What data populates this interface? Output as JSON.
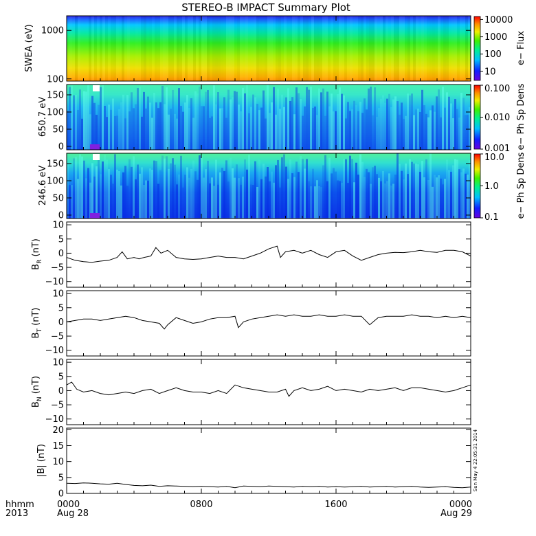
{
  "title": "STEREO-B IMPACT Summary Plot",
  "time_axis": {
    "row1_labels": [
      "hhmm",
      "0000",
      "0800",
      "1600",
      "0000"
    ],
    "row2_labels": [
      "2013",
      "Aug 28",
      "",
      "",
      "Aug 29"
    ],
    "hours": [
      0,
      8,
      16,
      24
    ],
    "range_hours": [
      0,
      24
    ]
  },
  "stamp": "Sun May  4 22:05:31 2014",
  "chart_data": [
    {
      "type": "heatmap",
      "ylabel": "SWEA (eV)",
      "yscale": "log",
      "ylim": [
        90,
        2000
      ],
      "yticks": [
        "1000",
        "100"
      ],
      "ytick_values": [
        1000,
        100
      ],
      "colorbar": {
        "label": "e− Flux",
        "scale": "log",
        "range": [
          3,
          15000
        ],
        "tick_labels": [
          "10000",
          "1000",
          "100",
          "10"
        ],
        "tick_values": [
          10000,
          1000,
          100,
          10
        ]
      }
    },
    {
      "type": "heatmap",
      "ylabel": "650.7 eV",
      "ylim": [
        -10,
        180
      ],
      "yticks": [
        "150",
        "100",
        "50",
        "0"
      ],
      "ytick_values": [
        150,
        100,
        50,
        0
      ],
      "colorbar": {
        "label": "e− Ph Sp Dens",
        "scale": "log",
        "range": [
          0.001,
          0.1
        ],
        "tick_labels": [
          "0.100",
          "0.010",
          "0.001"
        ],
        "tick_values": [
          0.1,
          0.01,
          0.001
        ]
      }
    },
    {
      "type": "heatmap",
      "ylabel": "246.6 eV",
      "ylim": [
        -10,
        180
      ],
      "yticks": [
        "150",
        "100",
        "50",
        "0"
      ],
      "ytick_values": [
        150,
        100,
        50,
        0
      ],
      "colorbar": {
        "label": "e− Ph Sp Dens",
        "scale": "log",
        "range": [
          0.1,
          10
        ],
        "tick_labels": [
          "10.0",
          "1.0",
          "0.1"
        ],
        "tick_values": [
          10,
          1,
          0.1
        ]
      }
    },
    {
      "type": "line",
      "ylabel_main": "B",
      "ylabel_sub": "R",
      "ylabel_unit": " (nT)",
      "ylim": [
        -12,
        11
      ],
      "yticks": [
        "10",
        "5",
        "0",
        "−5",
        "−10"
      ],
      "ytick_values": [
        10,
        5,
        0,
        -5,
        -10
      ],
      "x": [
        0,
        0.5,
        1,
        1.5,
        2,
        2.5,
        3,
        3.3,
        3.6,
        4,
        4.3,
        4.6,
        5,
        5.3,
        5.6,
        6,
        6.5,
        7,
        7.5,
        8,
        8.5,
        9,
        9.5,
        10,
        10.5,
        11,
        11.5,
        12,
        12.5,
        12.7,
        13,
        13.5,
        14,
        14.5,
        15,
        15.5,
        16,
        16.5,
        17,
        17.5,
        18,
        18.5,
        19,
        19.5,
        20,
        20.5,
        21,
        21.5,
        22,
        22.5,
        23,
        23.5,
        24
      ],
      "y": [
        -1.5,
        -2.5,
        -3,
        -3.2,
        -2.8,
        -2.5,
        -1.5,
        0.5,
        -2,
        -1.5,
        -2,
        -1.5,
        -1,
        2,
        0,
        1,
        -1.5,
        -2,
        -2.2,
        -2,
        -1.5,
        -1,
        -1.5,
        -1.5,
        -2,
        -1,
        0,
        1.5,
        2.5,
        -1.5,
        0.5,
        1,
        0,
        1,
        -0.5,
        -1.5,
        0.5,
        1,
        -1,
        -2.5,
        -1.5,
        -0.5,
        0,
        0.3,
        0.2,
        0.5,
        1,
        0.5,
        0.3,
        1,
        1,
        0.5,
        -1
      ]
    },
    {
      "type": "line",
      "ylabel_main": "B",
      "ylabel_sub": "T",
      "ylabel_unit": " (nT)",
      "ylim": [
        -12,
        11
      ],
      "yticks": [
        "10",
        "5",
        "0",
        "−5",
        "−10"
      ],
      "ytick_values": [
        10,
        5,
        0,
        -5,
        -10
      ],
      "x": [
        0,
        0.5,
        1,
        1.5,
        2,
        2.5,
        3,
        3.5,
        4,
        4.5,
        5,
        5.5,
        5.8,
        6,
        6.5,
        7,
        7.5,
        8,
        8.5,
        9,
        9.5,
        10,
        10.2,
        10.5,
        11,
        11.5,
        12,
        12.5,
        13,
        13.5,
        14,
        14.5,
        15,
        15.5,
        16,
        16.5,
        17,
        17.5,
        18,
        18.5,
        19,
        19.5,
        20,
        20.5,
        21,
        21.5,
        22,
        22.5,
        23,
        23.5,
        24
      ],
      "y": [
        0,
        0.5,
        1,
        1,
        0.5,
        1,
        1.5,
        2,
        1.5,
        0.5,
        0,
        -0.5,
        -2.5,
        -1,
        1.5,
        0.5,
        -0.5,
        0,
        1,
        1.5,
        1.5,
        2,
        -2,
        0,
        1,
        1.5,
        2,
        2.5,
        2,
        2.5,
        2,
        2,
        2.5,
        2,
        2,
        2.5,
        2,
        2,
        -1,
        1.5,
        2,
        2,
        2,
        2.5,
        2,
        2,
        1.5,
        2,
        1.5,
        2,
        1.5
      ]
    },
    {
      "type": "line",
      "ylabel_main": "B",
      "ylabel_sub": "N",
      "ylabel_unit": " (nT)",
      "ylim": [
        -12,
        11
      ],
      "yticks": [
        "10",
        "5",
        "0",
        "−5",
        "−10"
      ],
      "ytick_values": [
        10,
        5,
        0,
        -5,
        -10
      ],
      "x": [
        0,
        0.3,
        0.6,
        1,
        1.5,
        2,
        2.5,
        3,
        3.5,
        4,
        4.5,
        5,
        5.5,
        6,
        6.5,
        7,
        7.5,
        8,
        8.5,
        9,
        9.5,
        10,
        10.5,
        11,
        11.5,
        12,
        12.5,
        13,
        13.2,
        13.5,
        14,
        14.5,
        15,
        15.5,
        16,
        16.5,
        17,
        17.5,
        18,
        18.5,
        19,
        19.5,
        20,
        20.5,
        21,
        21.5,
        22,
        22.5,
        23,
        23.5,
        24
      ],
      "y": [
        2,
        3,
        0.5,
        -0.5,
        0,
        -1,
        -1.5,
        -1,
        -0.5,
        -1,
        0,
        0.5,
        -1,
        0,
        1,
        0,
        -0.5,
        -0.5,
        -1,
        0,
        -1,
        2,
        1,
        0.5,
        0,
        -0.5,
        -0.5,
        0.5,
        -2,
        0,
        1,
        0,
        0.5,
        1.5,
        0,
        0.5,
        0,
        -0.5,
        0.5,
        0,
        0.5,
        1,
        0,
        1,
        1,
        0.5,
        0,
        -0.5,
        0,
        1,
        2
      ]
    },
    {
      "type": "line",
      "ylabel_main": "|B| (nT)",
      "ylim": [
        0,
        20.5
      ],
      "yticks": [
        "20",
        "15",
        "10",
        "5",
        "0"
      ],
      "ytick_values": [
        20,
        15,
        10,
        5,
        0
      ],
      "x": [
        0,
        0.5,
        1,
        1.5,
        2,
        2.5,
        3,
        3.5,
        4,
        4.5,
        5,
        5.5,
        6,
        6.5,
        7,
        7.5,
        8,
        8.5,
        9,
        9.5,
        10,
        10.5,
        11,
        11.5,
        12,
        12.5,
        13,
        13.5,
        14,
        14.5,
        15,
        15.5,
        16,
        16.5,
        17,
        17.5,
        18,
        18.5,
        19,
        19.5,
        20,
        20.5,
        21,
        21.5,
        22,
        22.5,
        23,
        23.5,
        24
      ],
      "y": [
        3.2,
        3.1,
        3.3,
        3.2,
        3,
        2.9,
        3.2,
        2.8,
        2.5,
        2.4,
        2.6,
        2.2,
        2.4,
        2.3,
        2.2,
        2.1,
        2.2,
        2.1,
        2,
        2.2,
        1.8,
        2.3,
        2.2,
        2.1,
        2.3,
        2.2,
        2.1,
        2,
        2.2,
        2.1,
        2.2,
        2,
        2.1,
        2,
        2.1,
        2.2,
        2,
        2.1,
        2.2,
        2,
        2.1,
        2.2,
        2,
        1.9,
        2,
        2.1,
        1.9,
        1.8,
        2
      ]
    }
  ]
}
